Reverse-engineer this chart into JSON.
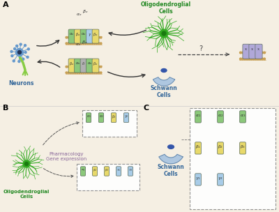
{
  "bg_color": "#f5efe3",
  "alpha_c": "#8bc87a",
  "beta_c": "#e8d96a",
  "gamma_c": "#a8cce8",
  "delta_c": "#b0b0b0",
  "unk_c": "#b0a8d8",
  "oligo_c": "#33aa22",
  "oligo_dark": "#1a7a10",
  "neuron_body": "#6699cc",
  "neuron_axon": "#88cc44",
  "schwann_c": "#a8c4e0",
  "schwann_nuc": "#3355aa",
  "mem_c": "#c8a055",
  "arrow_c": "#333333",
  "green_text": "#228822",
  "blue_text": "#336699",
  "purple_text": "#886699",
  "panel_labels": [
    "A",
    "B",
    "C"
  ],
  "neurons_lbl": "Neurons",
  "oligo_lbl_A": "Oligodendroglial\nCells",
  "schwann_lbl_A": "Schwann\nCells",
  "oligo_lbl_B": "Oligodendroglial\nCells",
  "schwann_lbl_C": "Schwann\nCells",
  "pharm_lbl": "Pharmacology\nGene expression"
}
